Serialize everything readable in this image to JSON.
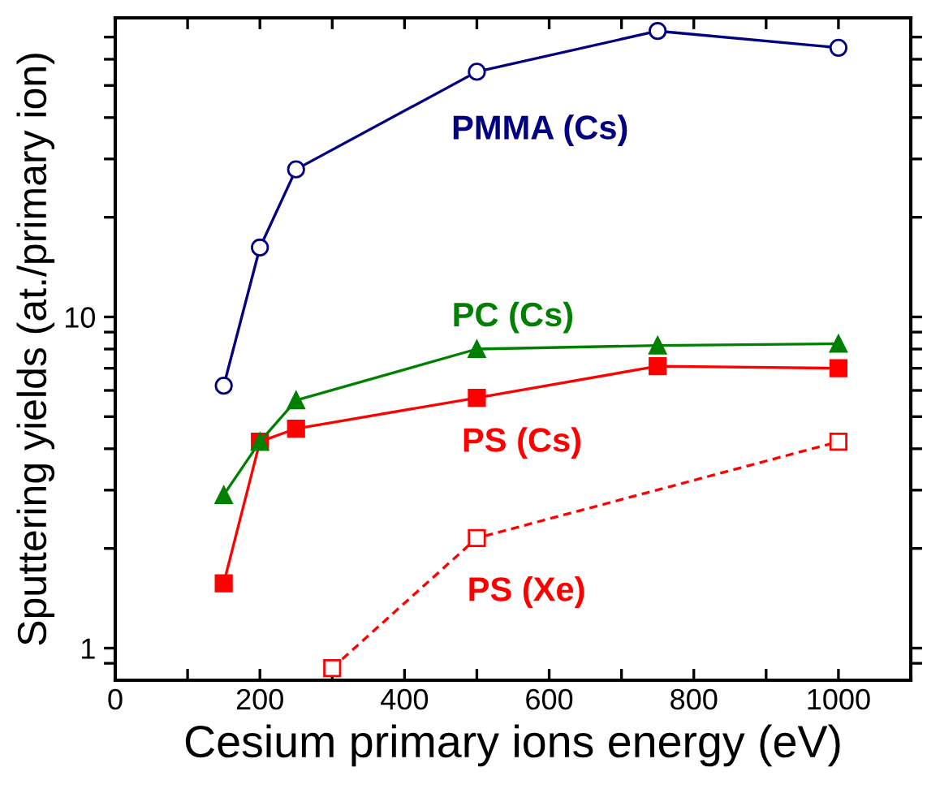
{
  "chart_data": {
    "type": "line",
    "xlabel": "Cesium primary ions energy (eV)",
    "ylabel": "Sputtering yields (at./primary ion)",
    "log": "y",
    "xlim": [
      0,
      1100
    ],
    "ylim": [
      0.8,
      80
    ],
    "xticks": [
      0,
      {
        "value": 100,
        "label": null
      },
      200,
      {
        "value": 300,
        "label": null
      },
      400,
      {
        "value": 500,
        "label": null
      },
      600,
      {
        "value": 700,
        "label": null
      },
      800,
      {
        "value": 900,
        "label": null
      },
      1000
    ],
    "yticks": [
      {
        "value": 0.9,
        "label": null
      },
      1,
      {
        "value": 2,
        "label": null
      },
      {
        "value": 3,
        "label": null
      },
      {
        "value": 4,
        "label": null
      },
      {
        "value": 5,
        "label": null
      },
      {
        "value": 6,
        "label": null
      },
      {
        "value": 7,
        "label": null
      },
      {
        "value": 8,
        "label": null
      },
      {
        "value": 9,
        "label": null
      },
      10,
      {
        "value": 20,
        "label": null
      },
      {
        "value": 30,
        "label": null
      },
      {
        "value": 40,
        "label": null
      },
      {
        "value": 50,
        "label": null
      },
      {
        "value": 60,
        "label": null
      },
      {
        "value": 70,
        "label": null
      }
    ],
    "grid": false,
    "series": [
      {
        "name": "PMMA (Cs)",
        "color": "#000080",
        "marker": "circle",
        "line_style": "solid",
        "x": [
          150,
          200,
          250,
          500,
          750,
          1000
        ],
        "values": [
          6.2,
          16.2,
          27.9,
          55,
          73,
          65
        ]
      },
      {
        "name": "PC (Cs)",
        "color": "#008000",
        "marker": "triangle",
        "line_style": "solid",
        "x": [
          150,
          200,
          250,
          500,
          750,
          1000
        ],
        "values": [
          2.9,
          4.2,
          5.6,
          8.0,
          8.2,
          8.3
        ]
      },
      {
        "name": "PS (Cs)",
        "color": "#ff0000",
        "marker": "square",
        "line_style": "solid",
        "x": [
          150,
          200,
          250,
          500,
          750,
          1000
        ],
        "values": [
          1.57,
          4.2,
          4.6,
          5.7,
          7.1,
          7.0
        ]
      },
      {
        "name": "PS (Xe)",
        "color": "#ff0000",
        "marker": "square",
        "line_style": "dashed",
        "x": [
          300,
          500,
          1000
        ],
        "values": [
          0.87,
          2.15,
          4.2
        ]
      }
    ]
  }
}
